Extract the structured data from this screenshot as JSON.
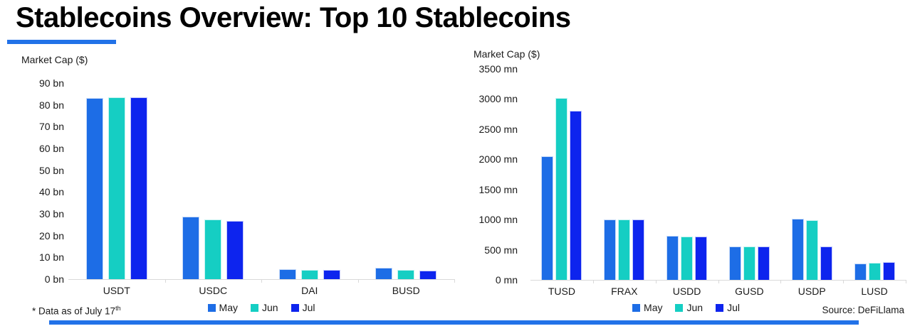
{
  "page": {
    "title": "Stablecoins Overview: Top 10 Stablecoins",
    "footnote": {
      "text": "* Data as of July 17",
      "superscript": "th"
    },
    "source": "Source: DeFiLlama"
  },
  "colors": {
    "series": {
      "May": "#1d6de6",
      "Jun": "#15cec3",
      "Jul": "#0d24ee"
    },
    "accent": "#2272e8",
    "axis_line": "#d9d9d9",
    "text": "#1a1a1a"
  },
  "chart_data": [
    {
      "type": "bar",
      "title": "Market Cap ($)",
      "unit": "bn",
      "categories": [
        "USDT",
        "USDC",
        "DAI",
        "BUSD"
      ],
      "series": [
        {
          "name": "May",
          "values": [
            83.2,
            28.8,
            4.7,
            5.2
          ]
        },
        {
          "name": "Jun",
          "values": [
            83.5,
            27.4,
            4.4,
            4.3
          ]
        },
        {
          "name": "Jul",
          "values": [
            83.5,
            26.8,
            4.3,
            3.9
          ]
        }
      ],
      "ylim": [
        0,
        90
      ],
      "ytick_step": 10,
      "ytick_labels": [
        "0 bn",
        "10 bn",
        "20 bn",
        "30 bn",
        "40 bn",
        "50 bn",
        "60 bn",
        "70 bn",
        "80 bn",
        "90 bn"
      ],
      "legend": [
        "May",
        "Jun",
        "Jul"
      ],
      "legend_position": "bottom",
      "grid": false
    },
    {
      "type": "bar",
      "title": "Market Cap ($)",
      "unit": "mn",
      "categories": [
        "TUSD",
        "FRAX",
        "USDD",
        "GUSD",
        "USDP",
        "LUSD"
      ],
      "series": [
        {
          "name": "May",
          "values": [
            2050,
            1000,
            735,
            560,
            1010,
            270
          ]
        },
        {
          "name": "Jun",
          "values": [
            3020,
            1000,
            725,
            555,
            985,
            280
          ]
        },
        {
          "name": "Jul",
          "values": [
            2810,
            1000,
            720,
            560,
            560,
            295
          ]
        }
      ],
      "ylim": [
        0,
        3500
      ],
      "ytick_step": 500,
      "ytick_labels": [
        "0 mn",
        "500 mn",
        "1000 mn",
        "1500 mn",
        "2000 mn",
        "2500 mn",
        "3000 mn",
        "3500 mn"
      ],
      "legend": [
        "May",
        "Jun",
        "Jul"
      ],
      "legend_position": "bottom",
      "grid": false
    }
  ]
}
